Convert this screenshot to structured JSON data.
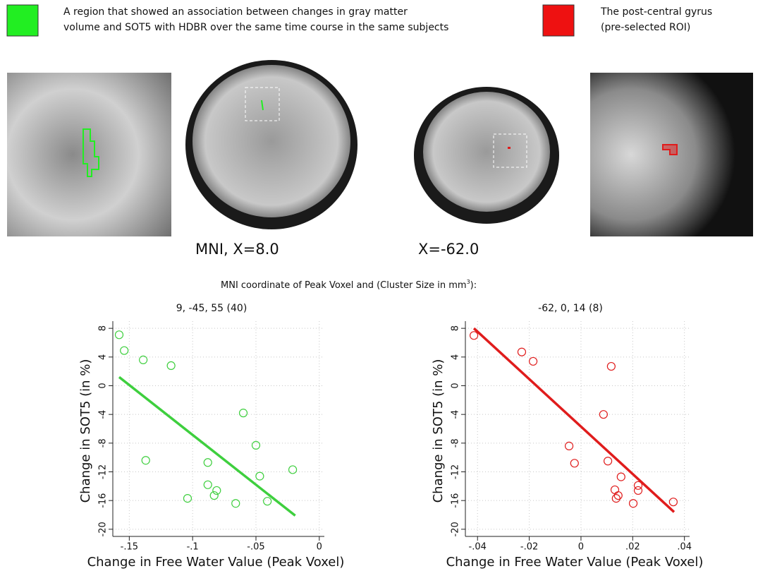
{
  "legend": [
    {
      "color": "#22ee22",
      "lines": [
        "A region that showed an association between changes in gray matter",
        "volume and SOT5 with HDBR over the same time course in the same subjects"
      ]
    },
    {
      "color": "#ee1111",
      "lines": [
        "The post-central gyrus",
        "(pre-selected ROI)"
      ]
    }
  ],
  "captions": [
    "MNI, X=8.0",
    "X=-62.0"
  ],
  "note": [
    "MNI coordinate of Peak Voxel and  (Cluster Size in mm",
    "3",
    "):"
  ],
  "chart_data": [
    {
      "type": "scatter",
      "title": "9, -45, 55   (40)",
      "xlabel": "Change in Free Water Value (Peak Voxel)",
      "ylabel": "Change in SOT5 (in %)",
      "color": "#3ecf3e",
      "x": [
        -0.158,
        -0.154,
        -0.139,
        -0.117,
        -0.137,
        -0.06,
        -0.05,
        -0.088,
        -0.047,
        -0.021,
        -0.088,
        -0.081,
        -0.083,
        -0.104,
        -0.066,
        -0.041
      ],
      "values": [
        7.1,
        4.9,
        3.6,
        2.8,
        -10.4,
        -3.8,
        -8.3,
        -10.7,
        -12.6,
        -11.7,
        -13.8,
        -14.6,
        -15.3,
        -15.7,
        -16.4,
        -16.1
      ],
      "fit": {
        "x": [
          -0.158,
          -0.019
        ],
        "values": [
          1.2,
          -18.1
        ]
      },
      "xlim": [
        -0.163,
        0.004
      ],
      "ylim": [
        -21,
        9
      ],
      "xticks": [
        {
          "value": -0.15,
          "label": "-.15"
        },
        {
          "value": -0.1,
          "label": "-.1"
        },
        {
          "value": -0.05,
          "label": "-.05"
        },
        0
      ],
      "yticks": [
        8,
        4,
        0,
        -4,
        -8,
        -12,
        -16,
        -20
      ],
      "grid": true
    },
    {
      "type": "scatter",
      "title": "-62, 0, 14   (8)",
      "xlabel": "Change in Free Water Value (Peak Voxel)",
      "ylabel": "Change in SOT5 (in %)",
      "color": "#e01c1c",
      "x": [
        -0.0414,
        -0.0229,
        -0.0185,
        0.0117,
        0.0087,
        -0.0046,
        -0.0025,
        0.0104,
        0.0155,
        0.0131,
        0.0221,
        0.0221,
        0.0144,
        0.0136,
        0.0202,
        0.0357
      ],
      "values": [
        7.0,
        4.7,
        3.4,
        2.7,
        -4.0,
        -8.4,
        -10.8,
        -10.5,
        -12.7,
        -14.5,
        -13.9,
        -14.6,
        -15.3,
        -15.7,
        -16.4,
        -16.2
      ],
      "fit": {
        "x": [
          -0.0414,
          0.036
        ],
        "values": [
          8.0,
          -17.6
        ]
      },
      "xlim": [
        -0.0447,
        0.042
      ],
      "ylim": [
        -21,
        9
      ],
      "xticks": [
        {
          "value": -0.04,
          "label": "-.04"
        },
        {
          "value": -0.02,
          "label": "-.02"
        },
        0,
        {
          "value": 0.02,
          "label": ".02"
        },
        {
          "value": 0.04,
          "label": ".04"
        }
      ],
      "yticks": [
        8,
        4,
        0,
        -4,
        -8,
        -12,
        -16,
        -20
      ],
      "grid": true
    }
  ]
}
